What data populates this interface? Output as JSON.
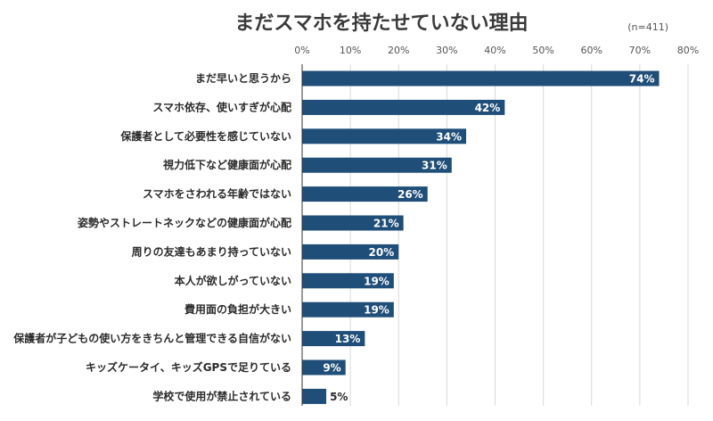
{
  "chart_data": {
    "type": "bar",
    "orientation": "horizontal",
    "title": "まだスマホを持たせていない理由",
    "note": "(n=411)",
    "categories": [
      "まだ早いと思うから",
      "スマホ依存、使いすぎが心配",
      "保護者として必要性を感じていない",
      "視力低下など健康面が心配",
      "スマホをさわれる年齢ではない",
      "姿勢やストレートネックなどの健康面が心配",
      "周りの友達もあまり持っていない",
      "本人が欲しがっていない",
      "費用面の負担が大きい",
      "保護者が子どもの使い方をきちんと管理できる自信がない",
      "キッズケータイ、キッズGPSで足りている",
      "学校で使用が禁止されている"
    ],
    "values": [
      74,
      42,
      34,
      31,
      26,
      21,
      20,
      19,
      19,
      13,
      9,
      5
    ],
    "value_labels": [
      "74%",
      "42%",
      "34%",
      "31%",
      "26%",
      "21%",
      "20%",
      "19%",
      "19%",
      "13%",
      "9%",
      "5%"
    ],
    "xlim": [
      0,
      80
    ],
    "ticks": [
      0,
      10,
      20,
      30,
      40,
      50,
      60,
      70,
      80
    ],
    "tick_labels": [
      "0%",
      "10%",
      "20%",
      "30%",
      "40%",
      "50%",
      "60%",
      "70%",
      "80%"
    ],
    "xlabel": "",
    "ylabel": "",
    "grid": true,
    "bar_color": "#1f4e79"
  }
}
